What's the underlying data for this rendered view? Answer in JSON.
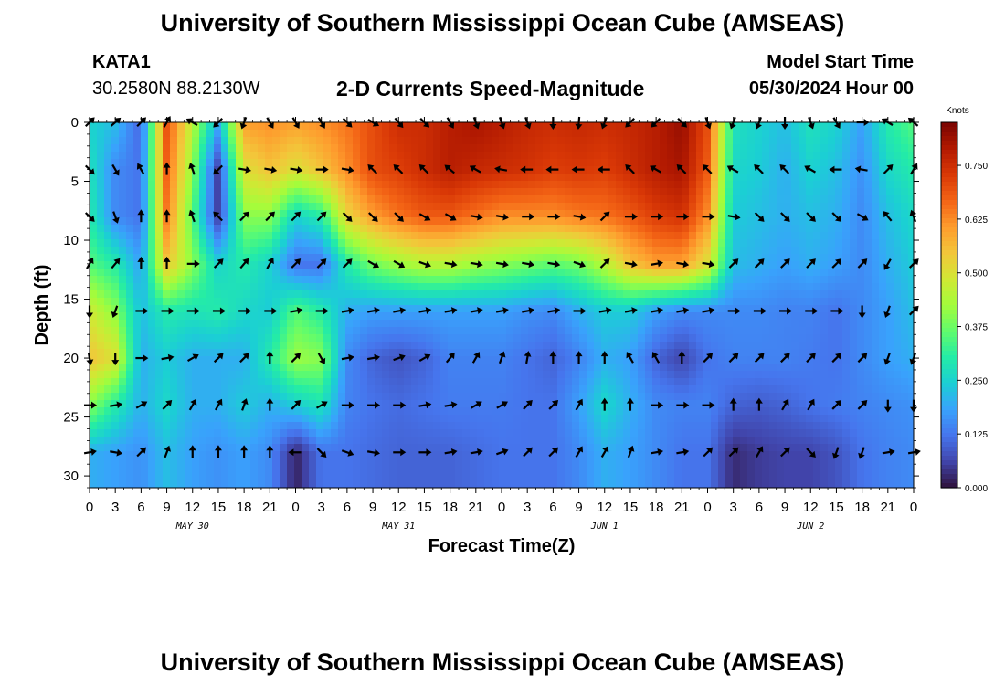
{
  "header": {
    "title": "University of Southern Mississippi Ocean Cube (AMSEAS)",
    "station": "KATA1",
    "coords": "30.2580N  88.2130W",
    "subtitle": "2-D Currents Speed-Magnitude",
    "start_label": "Model Start Time",
    "start_value": "05/30/2024 Hour 00"
  },
  "footer": {
    "title": "University of Southern Mississippi Ocean Cube (AMSEAS)"
  },
  "chart_data": {
    "type": "heatmap",
    "title": "2-D Currents Speed-Magnitude",
    "xlabel": "Forecast Time(Z)",
    "ylabel": "Depth (ft)",
    "x_unit": "hours since 05/30/2024 00Z",
    "xlim": [
      0,
      96
    ],
    "ylim": [
      0,
      31
    ],
    "y_inverted": true,
    "x_ticks": [
      0,
      3,
      6,
      9,
      12,
      15,
      18,
      21,
      24,
      27,
      30,
      33,
      36,
      39,
      42,
      45,
      48,
      51,
      54,
      57,
      60,
      63,
      66,
      69,
      72,
      75,
      78,
      81,
      84,
      87,
      90,
      93,
      96
    ],
    "x_tick_labels": [
      "0",
      "3",
      "6",
      "9",
      "12",
      "15",
      "18",
      "21",
      "0",
      "3",
      "6",
      "9",
      "12",
      "15",
      "18",
      "21",
      "0",
      "3",
      "6",
      "9",
      "12",
      "15",
      "18",
      "21",
      "0",
      "3",
      "6",
      "9",
      "12",
      "15",
      "18",
      "21",
      "0"
    ],
    "day_labels": [
      {
        "hour": 12,
        "label": "MAY 30"
      },
      {
        "hour": 36,
        "label": "MAY 31"
      },
      {
        "hour": 60,
        "label": "JUN 1"
      },
      {
        "hour": 84,
        "label": "JUN 2"
      }
    ],
    "y_ticks": [
      0,
      5,
      10,
      15,
      20,
      25,
      30
    ],
    "y_tick_labels": [
      "0",
      "5",
      "10",
      "15",
      "20",
      "25",
      "30"
    ],
    "colorbar": {
      "unit": "Knots",
      "range": [
        0,
        0.85
      ],
      "ticks": [
        0.0,
        0.125,
        0.25,
        0.375,
        0.5,
        0.625,
        0.75
      ],
      "tick_labels": [
        "0.000",
        "0.125",
        "0.250",
        "0.375",
        "0.500",
        "0.625",
        "0.750"
      ],
      "colors": [
        "#30123b",
        "#4145ab",
        "#4675ed",
        "#39a2fc",
        "#1bcfd4",
        "#24eca6",
        "#61fc6c",
        "#a4fc3b",
        "#d1e834",
        "#f3c63a",
        "#fe9b2d",
        "#f36315",
        "#d93806",
        "#b11901",
        "#7a0402"
      ]
    },
    "depth_levels": [
      0,
      4,
      8,
      12,
      16,
      20,
      24,
      28
    ],
    "time_hours": [
      0,
      3,
      6,
      9,
      12,
      15,
      18,
      21,
      24,
      27,
      30,
      33,
      36,
      39,
      42,
      45,
      48,
      51,
      54,
      57,
      60,
      63,
      66,
      69,
      72,
      75,
      78,
      81,
      84,
      87,
      90,
      93,
      96
    ],
    "speed_knots": [
      [
        0.25,
        0.22,
        0.1,
        0.7,
        0.45,
        0.2,
        0.6,
        0.62,
        0.6,
        0.62,
        0.65,
        0.7,
        0.75,
        0.75,
        0.78,
        0.8,
        0.78,
        0.76,
        0.75,
        0.76,
        0.75,
        0.76,
        0.78,
        0.82,
        0.7,
        0.28,
        0.25,
        0.22,
        0.28,
        0.25,
        0.18,
        0.3,
        0.35
      ],
      [
        0.28,
        0.15,
        0.12,
        0.68,
        0.4,
        0.05,
        0.5,
        0.55,
        0.5,
        0.55,
        0.62,
        0.7,
        0.72,
        0.75,
        0.78,
        0.76,
        0.75,
        0.74,
        0.72,
        0.73,
        0.72,
        0.75,
        0.78,
        0.8,
        0.68,
        0.26,
        0.24,
        0.2,
        0.25,
        0.22,
        0.16,
        0.26,
        0.3
      ],
      [
        0.3,
        0.15,
        0.12,
        0.65,
        0.35,
        0.05,
        0.4,
        0.4,
        0.25,
        0.3,
        0.52,
        0.6,
        0.65,
        0.68,
        0.68,
        0.65,
        0.62,
        0.62,
        0.62,
        0.64,
        0.65,
        0.68,
        0.72,
        0.74,
        0.62,
        0.24,
        0.22,
        0.2,
        0.22,
        0.2,
        0.15,
        0.22,
        0.26
      ],
      [
        0.35,
        0.3,
        0.18,
        0.55,
        0.4,
        0.25,
        0.3,
        0.25,
        0.12,
        0.12,
        0.3,
        0.38,
        0.42,
        0.45,
        0.45,
        0.42,
        0.4,
        0.38,
        0.36,
        0.38,
        0.45,
        0.55,
        0.6,
        0.6,
        0.5,
        0.22,
        0.2,
        0.18,
        0.2,
        0.18,
        0.15,
        0.2,
        0.24
      ],
      [
        0.48,
        0.4,
        0.22,
        0.3,
        0.28,
        0.3,
        0.26,
        0.24,
        0.35,
        0.3,
        0.2,
        0.18,
        0.18,
        0.18,
        0.18,
        0.18,
        0.18,
        0.16,
        0.15,
        0.2,
        0.24,
        0.24,
        0.18,
        0.15,
        0.15,
        0.15,
        0.15,
        0.14,
        0.14,
        0.12,
        0.15,
        0.18,
        0.22
      ],
      [
        0.55,
        0.5,
        0.2,
        0.24,
        0.2,
        0.2,
        0.2,
        0.3,
        0.42,
        0.4,
        0.15,
        0.1,
        0.08,
        0.1,
        0.14,
        0.14,
        0.14,
        0.12,
        0.1,
        0.14,
        0.2,
        0.18,
        0.1,
        0.06,
        0.12,
        0.14,
        0.14,
        0.14,
        0.13,
        0.12,
        0.15,
        0.18,
        0.2
      ],
      [
        0.4,
        0.3,
        0.2,
        0.26,
        0.2,
        0.2,
        0.24,
        0.2,
        0.24,
        0.28,
        0.14,
        0.12,
        0.11,
        0.12,
        0.13,
        0.13,
        0.13,
        0.12,
        0.12,
        0.18,
        0.26,
        0.2,
        0.15,
        0.14,
        0.14,
        0.1,
        0.09,
        0.1,
        0.12,
        0.13,
        0.14,
        0.15,
        0.16
      ],
      [
        0.2,
        0.18,
        0.16,
        0.22,
        0.18,
        0.16,
        0.18,
        0.15,
        0.02,
        0.12,
        0.12,
        0.11,
        0.1,
        0.1,
        0.1,
        0.11,
        0.12,
        0.12,
        0.12,
        0.15,
        0.2,
        0.18,
        0.15,
        0.12,
        0.12,
        0.03,
        0.05,
        0.06,
        0.06,
        0.08,
        0.12,
        0.14,
        0.15
      ]
    ],
    "arrow_angles_deg": [
      [
        45,
        50,
        45,
        30,
        300,
        225,
        200,
        150,
        150,
        150,
        135,
        120,
        140,
        135,
        150,
        160,
        160,
        160,
        180,
        185,
        200,
        225,
        225,
        135,
        160,
        200,
        200,
        180,
        160,
        150,
        90,
        300,
        310
      ],
      [
        135,
        150,
        330,
        0,
        340,
        225,
        100,
        100,
        100,
        90,
        100,
        315,
        315,
        315,
        310,
        300,
        280,
        270,
        270,
        270,
        270,
        315,
        300,
        315,
        315,
        300,
        315,
        315,
        300,
        270,
        280,
        45,
        30
      ],
      [
        135,
        160,
        0,
        0,
        340,
        315,
        45,
        45,
        45,
        45,
        135,
        135,
        135,
        120,
        120,
        100,
        100,
        90,
        90,
        100,
        45,
        90,
        90,
        90,
        90,
        100,
        135,
        135,
        135,
        135,
        120,
        320,
        340
      ],
      [
        30,
        40,
        0,
        0,
        90,
        45,
        40,
        30,
        45,
        45,
        45,
        120,
        120,
        110,
        100,
        100,
        100,
        100,
        100,
        110,
        45,
        100,
        80,
        100,
        100,
        45,
        45,
        45,
        45,
        45,
        45,
        210,
        45
      ],
      [
        180,
        200,
        90,
        90,
        90,
        90,
        90,
        90,
        80,
        90,
        80,
        80,
        80,
        80,
        80,
        80,
        80,
        80,
        80,
        90,
        80,
        80,
        80,
        80,
        80,
        90,
        90,
        90,
        90,
        90,
        180,
        200,
        45
      ],
      [
        170,
        180,
        90,
        80,
        60,
        45,
        45,
        0,
        45,
        150,
        80,
        80,
        70,
        60,
        40,
        30,
        20,
        10,
        0,
        0,
        0,
        330,
        330,
        0,
        45,
        45,
        45,
        45,
        45,
        45,
        45,
        200,
        200
      ],
      [
        90,
        80,
        60,
        45,
        30,
        30,
        20,
        0,
        45,
        60,
        90,
        90,
        90,
        80,
        80,
        60,
        60,
        45,
        45,
        30,
        0,
        0,
        90,
        90,
        90,
        0,
        0,
        30,
        30,
        45,
        45,
        180,
        180
      ],
      [
        80,
        100,
        45,
        20,
        0,
        0,
        0,
        0,
        270,
        135,
        110,
        100,
        90,
        90,
        80,
        80,
        70,
        45,
        45,
        30,
        30,
        20,
        80,
        80,
        45,
        45,
        30,
        45,
        135,
        200,
        200,
        80,
        80
      ]
    ]
  }
}
